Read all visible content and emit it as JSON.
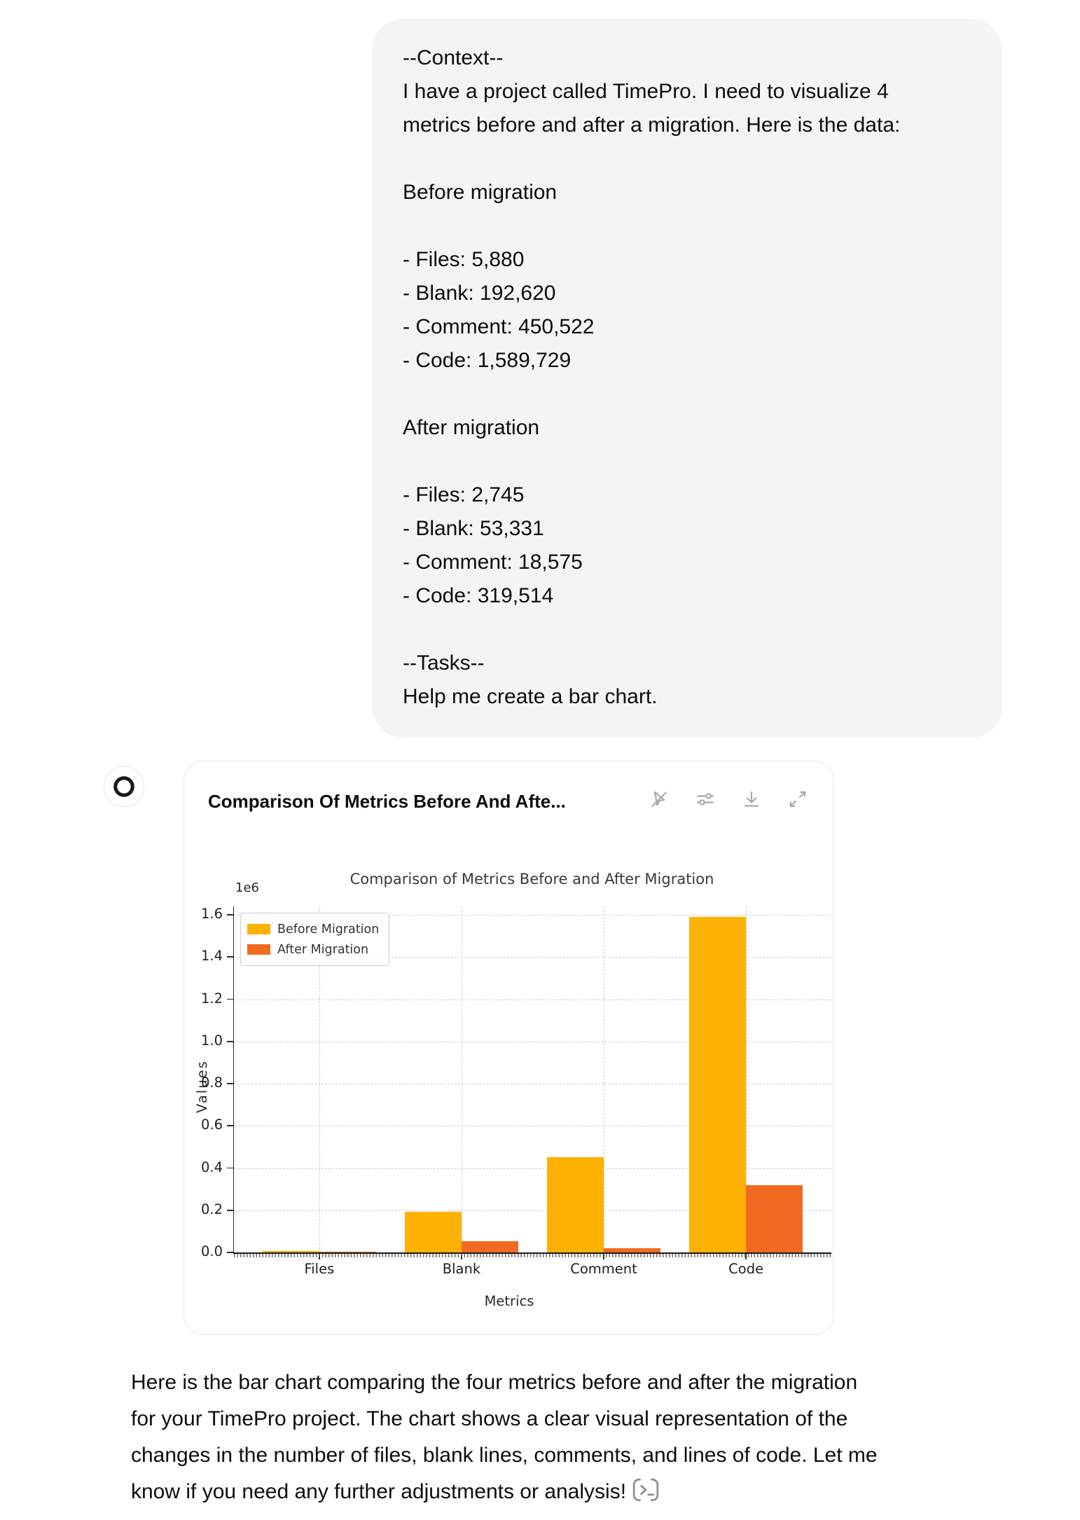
{
  "user_message": {
    "text": "--Context--\nI have a project called TimePro. I need to visualize 4\nmetrics before and after a migration. Here is the data:\n\nBefore migration\n\n- Files: 5,880\n- Blank: 192,620\n- Comment: 450,522\n- Code: 1,589,729\n\nAfter migration\n\n- Files: 2,745\n- Blank: 53,331\n- Comment: 18,575\n- Code: 319,514\n\n--Tasks--\nHelp me create a bar chart."
  },
  "assistant": {
    "card": {
      "title": "Comparison Of Metrics Before And Afte...",
      "toolbar_icons": [
        "interactivity-off-icon",
        "chart-settings-icon",
        "download-icon",
        "expand-icon"
      ]
    },
    "message": "Here is the bar chart comparing the four metrics before and after the migration\nfor your TimePro project. The chart shows a clear visual representation of the\nchanges in the number of files, blank lines, comments, and lines of code. Let me\nknow if you need any further adjustments or analysis!",
    "trailing_icon": "terminal-chip-icon"
  },
  "chart_data": {
    "type": "bar",
    "title": "Comparison of Metrics Before and After Migration",
    "xlabel": "Metrics",
    "ylabel": "Values",
    "offset_text": "1e6",
    "categories": [
      "Files",
      "Blank",
      "Comment",
      "Code"
    ],
    "series": [
      {
        "name": "Before Migration",
        "color": "#FFB103",
        "values": [
          5880,
          192620,
          450522,
          1589729
        ]
      },
      {
        "name": "After Migration",
        "color": "#F26A22",
        "values": [
          2745,
          53331,
          18575,
          319514
        ]
      }
    ],
    "ylim": [
      0,
      1640000
    ],
    "xlim": [
      -0.6,
      3.6
    ],
    "bar_width": 0.4,
    "yticks": [
      0,
      200000,
      400000,
      600000,
      800000,
      1000000,
      1200000,
      1400000,
      1600000
    ],
    "ytick_labels": [
      "0.0",
      "0.2",
      "0.4",
      "0.6",
      "0.8",
      "1.0",
      "1.2",
      "1.4",
      "1.6"
    ],
    "grid": true,
    "legend_position": "upper left"
  }
}
